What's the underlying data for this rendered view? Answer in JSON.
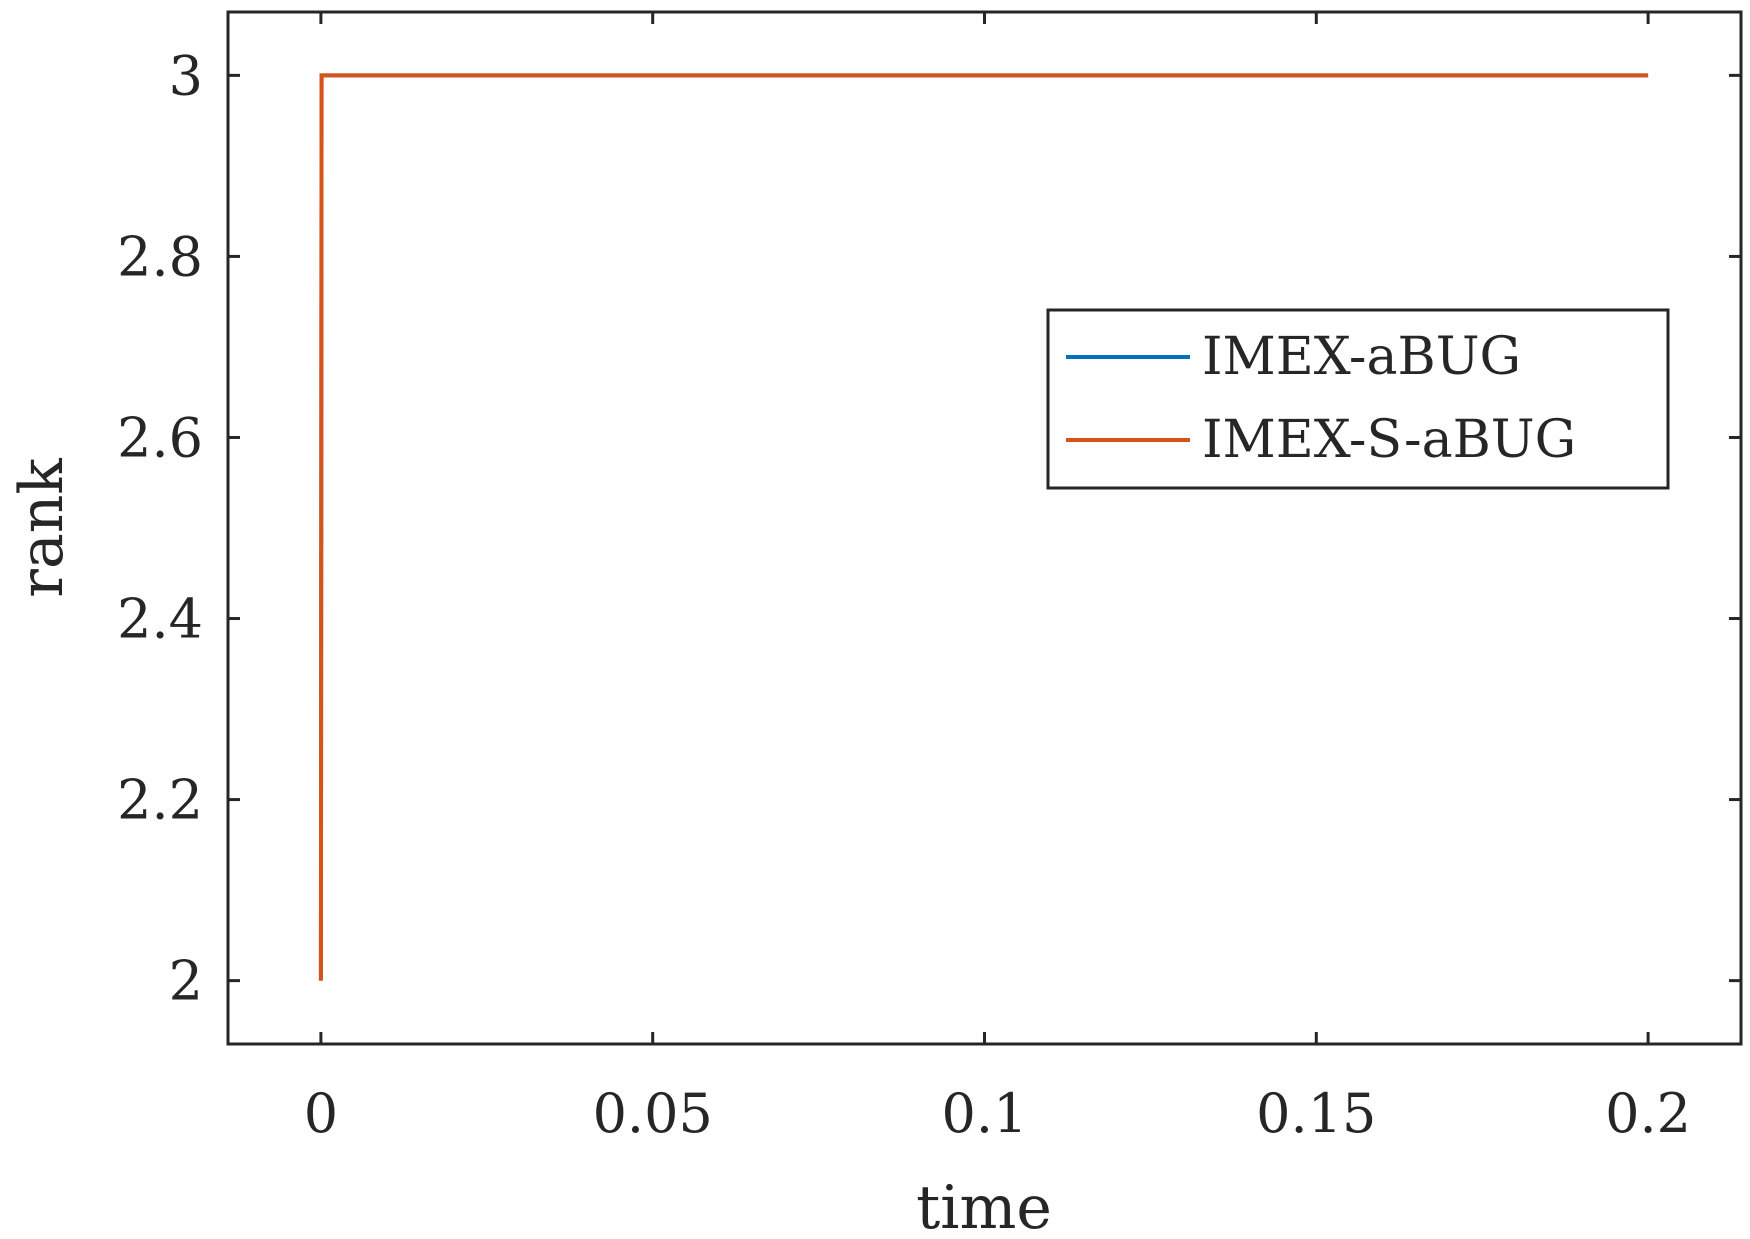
{
  "chart_data": {
    "type": "line",
    "title": "",
    "xlabel": "time",
    "ylabel": "rank",
    "xlim": [
      -0.014,
      0.214
    ],
    "ylim": [
      1.93,
      3.07
    ],
    "xticks": [
      0,
      0.05,
      0.1,
      0.15,
      0.2
    ],
    "xtick_labels": [
      "0",
      "0.05",
      "0.1",
      "0.15",
      "0.2"
    ],
    "yticks": [
      2,
      2.2,
      2.4,
      2.6,
      2.8,
      3
    ],
    "ytick_labels": [
      "2",
      "2.2",
      "2.4",
      "2.6",
      "2.8",
      "3"
    ],
    "grid": false,
    "legend_position": "top-right",
    "series": [
      {
        "name": "IMEX-aBUG",
        "color": "#0072BD",
        "x": [
          0,
          0.0001,
          0.2
        ],
        "y": [
          2,
          3,
          3
        ]
      },
      {
        "name": "IMEX-S-aBUG",
        "color": "#D95319",
        "x": [
          0,
          0.0001,
          0.2
        ],
        "y": [
          2,
          3,
          3
        ]
      }
    ]
  }
}
